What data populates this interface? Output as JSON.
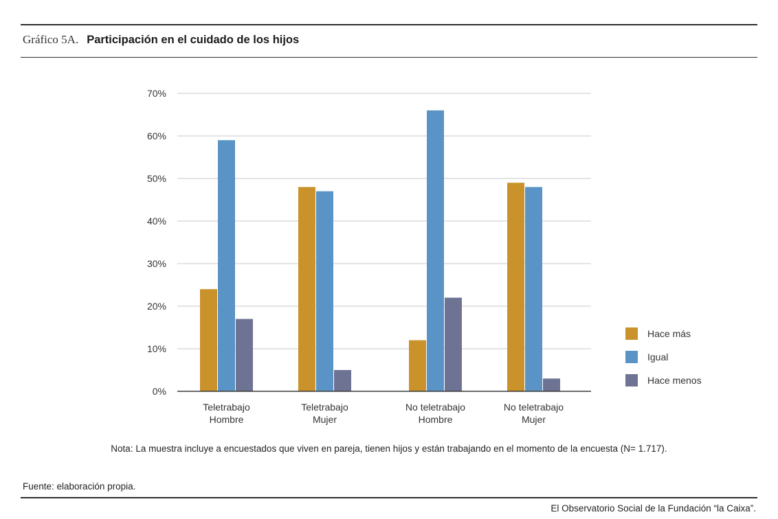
{
  "header": {
    "figure_label": "Gráfico 5A.",
    "title": "Participación en el cuidado de los hijos"
  },
  "chart_data": {
    "type": "bar",
    "title": "Participación en el cuidado de los hijos",
    "xlabel": "",
    "ylabel": "",
    "ylim": [
      0,
      70
    ],
    "yticks": [
      "0%",
      "10%",
      "20%",
      "30%",
      "40%",
      "50%",
      "60%",
      "70%"
    ],
    "grid": true,
    "legend_position": "right",
    "categories": [
      [
        "Teletrabajo",
        "Hombre"
      ],
      [
        "Teletrabajo",
        "Mujer"
      ],
      [
        "No teletrabajo",
        "Hombre"
      ],
      [
        "No teletrabajo",
        "Mujer"
      ]
    ],
    "series": [
      {
        "name": "Hace más",
        "color": "#C9922B",
        "values": [
          24,
          48,
          12,
          49
        ]
      },
      {
        "name": "Igual",
        "color": "#5A93C5",
        "values": [
          59,
          47,
          66,
          48
        ]
      },
      {
        "name": "Hace menos",
        "color": "#6E7394",
        "values": [
          17,
          5,
          22,
          3
        ]
      }
    ]
  },
  "note": "Nota: La muestra incluye a encuestados que viven en pareja, tienen hijos y están trabajando en el momento de la encuesta (N= 1.717).",
  "source": "Fuente: elaboración propia.",
  "credit": "El Observatorio Social de la Fundación “la Caixa”."
}
